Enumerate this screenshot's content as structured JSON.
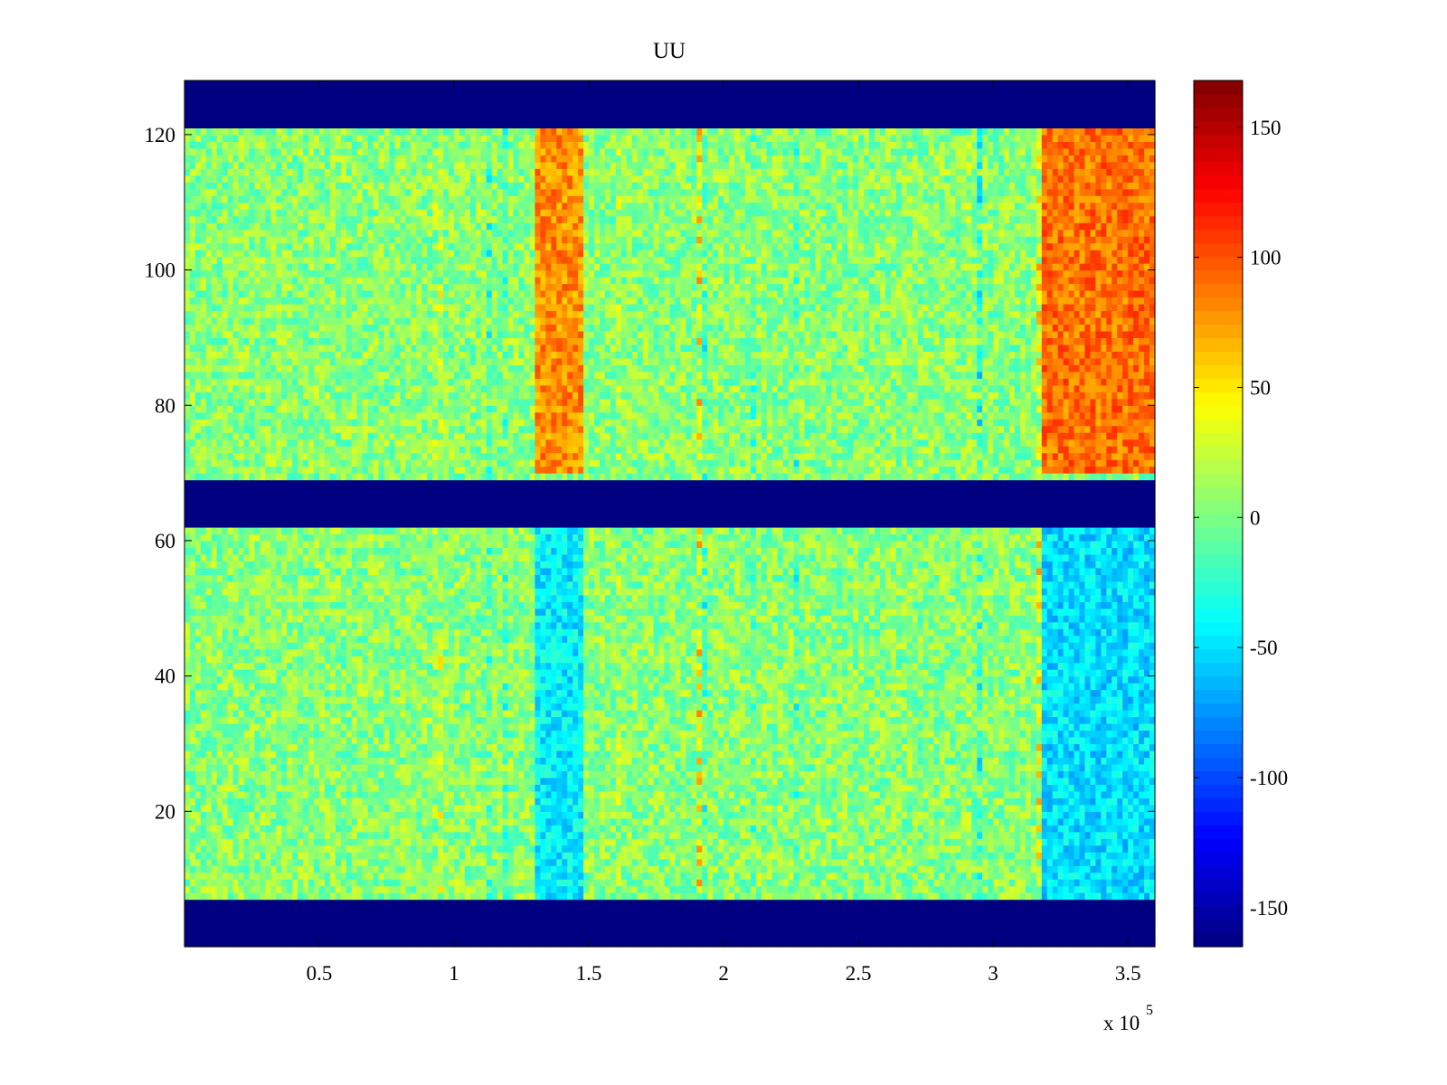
{
  "chart_data": {
    "type": "heatmap",
    "title": "UU",
    "xlabel": "",
    "ylabel": "",
    "x_multiplier_label": "x 10",
    "x_multiplier_exponent": "5",
    "xlim": [
      0,
      360000
    ],
    "ylim": [
      0,
      128
    ],
    "x_ticks": [
      {
        "value": 50000,
        "label": "0.5"
      },
      {
        "value": 100000,
        "label": "1"
      },
      {
        "value": 150000,
        "label": "1.5"
      },
      {
        "value": 200000,
        "label": "2"
      },
      {
        "value": 250000,
        "label": "2.5"
      },
      {
        "value": 300000,
        "label": "3"
      },
      {
        "value": 350000,
        "label": "3.5"
      }
    ],
    "y_ticks": [
      {
        "value": 20,
        "label": "20"
      },
      {
        "value": 40,
        "label": "40"
      },
      {
        "value": 60,
        "label": "60"
      },
      {
        "value": 80,
        "label": "80"
      },
      {
        "value": 100,
        "label": "100"
      },
      {
        "value": 120,
        "label": "120"
      }
    ],
    "colorbar": {
      "colormap": "jet",
      "clim": [
        -165,
        168
      ],
      "ticks": [
        {
          "value": 150,
          "label": "150"
        },
        {
          "value": 100,
          "label": "100"
        },
        {
          "value": 50,
          "label": "50"
        },
        {
          "value": 0,
          "label": "0"
        },
        {
          "value": -50,
          "label": "-50"
        },
        {
          "value": -100,
          "label": "-100"
        },
        {
          "value": -150,
          "label": "-150"
        }
      ]
    },
    "masked_rows": [
      [
        0,
        7
      ],
      [
        62,
        69
      ],
      [
        121,
        128
      ]
    ],
    "masked_value": -165,
    "active_regions": [
      {
        "x_range": [
          130000,
          148000
        ],
        "y_range": [
          70,
          121
        ],
        "value": 80
      },
      {
        "x_range": [
          318000,
          360000
        ],
        "y_range": [
          70,
          121
        ],
        "value": 90
      },
      {
        "x_range": [
          130000,
          148000
        ],
        "y_range": [
          7,
          62
        ],
        "value": -45
      },
      {
        "x_range": [
          318000,
          360000
        ],
        "y_range": [
          7,
          62
        ],
        "value": -50
      }
    ],
    "background_value": 5
  }
}
